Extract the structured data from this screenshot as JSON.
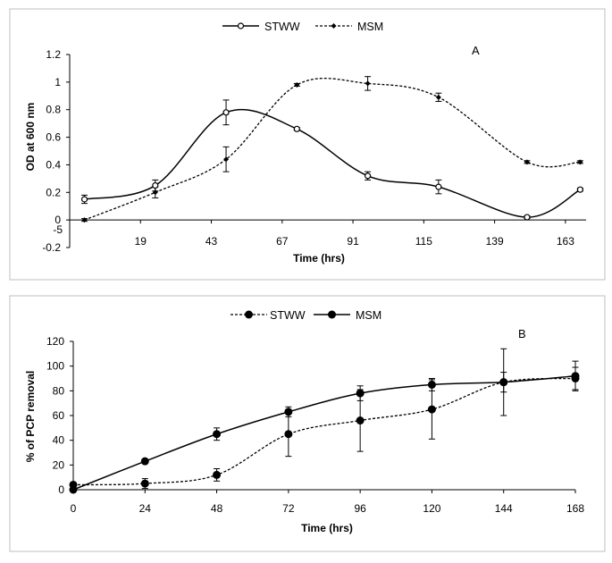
{
  "chart_data": [
    {
      "type": "line",
      "panel_label": "A",
      "xlabel": "Time (hrs)",
      "ylabel": "OD at 600 nm",
      "xlim": [
        -5,
        170
      ],
      "ylim": [
        -0.2,
        1.2
      ],
      "x_ticks": [
        -5,
        19,
        43,
        67,
        91,
        115,
        139,
        163
      ],
      "y_ticks": [
        -0.2,
        0,
        0.2,
        0.4,
        0.6,
        0.8,
        1,
        1.2
      ],
      "y_tick_labels": [
        "-0.2",
        "0",
        "0.2",
        "0.4",
        "0.6",
        "0.8",
        "1",
        "1.2"
      ],
      "legend_position": "top-center",
      "series": [
        {
          "name": "STWW",
          "style": "solid",
          "marker": "circle-open",
          "x": [
            0,
            24,
            48,
            72,
            96,
            120,
            150,
            168
          ],
          "y": [
            0.15,
            0.25,
            0.78,
            0.66,
            0.32,
            0.24,
            0.02,
            0.22
          ],
          "err": [
            0.03,
            0.04,
            0.09,
            0.01,
            0.03,
            0.05,
            0.01,
            0.01
          ]
        },
        {
          "name": "MSM",
          "style": "dashed",
          "marker": "diamond",
          "x": [
            0,
            24,
            48,
            72,
            96,
            120,
            150,
            168
          ],
          "y": [
            0.0,
            0.2,
            0.44,
            0.98,
            0.99,
            0.89,
            0.42,
            0.42
          ],
          "err": [
            0.01,
            0.04,
            0.09,
            0.01,
            0.05,
            0.03,
            0.01,
            0.01
          ]
        }
      ]
    },
    {
      "type": "line",
      "panel_label": "B",
      "xlabel": "Time (hrs)",
      "ylabel": "% of PCP removal",
      "xlim": [
        0,
        168
      ],
      "ylim": [
        0,
        120
      ],
      "x_ticks": [
        0,
        24,
        48,
        72,
        96,
        120,
        144,
        168
      ],
      "y_ticks": [
        0,
        20,
        40,
        60,
        80,
        100,
        120
      ],
      "y_tick_labels": [
        "0",
        "20",
        "40",
        "60",
        "80",
        "100",
        "120"
      ],
      "legend_position": "top-center",
      "series": [
        {
          "name": "STWW",
          "style": "dashed",
          "marker": "circle-filled",
          "x": [
            0,
            24,
            48,
            72,
            96,
            120,
            144,
            168
          ],
          "y": [
            4,
            5,
            12,
            45,
            56,
            65,
            87,
            90
          ],
          "err": [
            0,
            4,
            5,
            18,
            25,
            24,
            27,
            9
          ]
        },
        {
          "name": "MSM",
          "style": "solid",
          "marker": "circle-filled",
          "x": [
            0,
            24,
            48,
            72,
            96,
            120,
            144,
            168
          ],
          "y": [
            0,
            23,
            45,
            63,
            78,
            85,
            87,
            92
          ],
          "err": [
            0,
            1,
            5,
            4,
            6,
            5,
            8,
            12
          ]
        }
      ]
    }
  ]
}
